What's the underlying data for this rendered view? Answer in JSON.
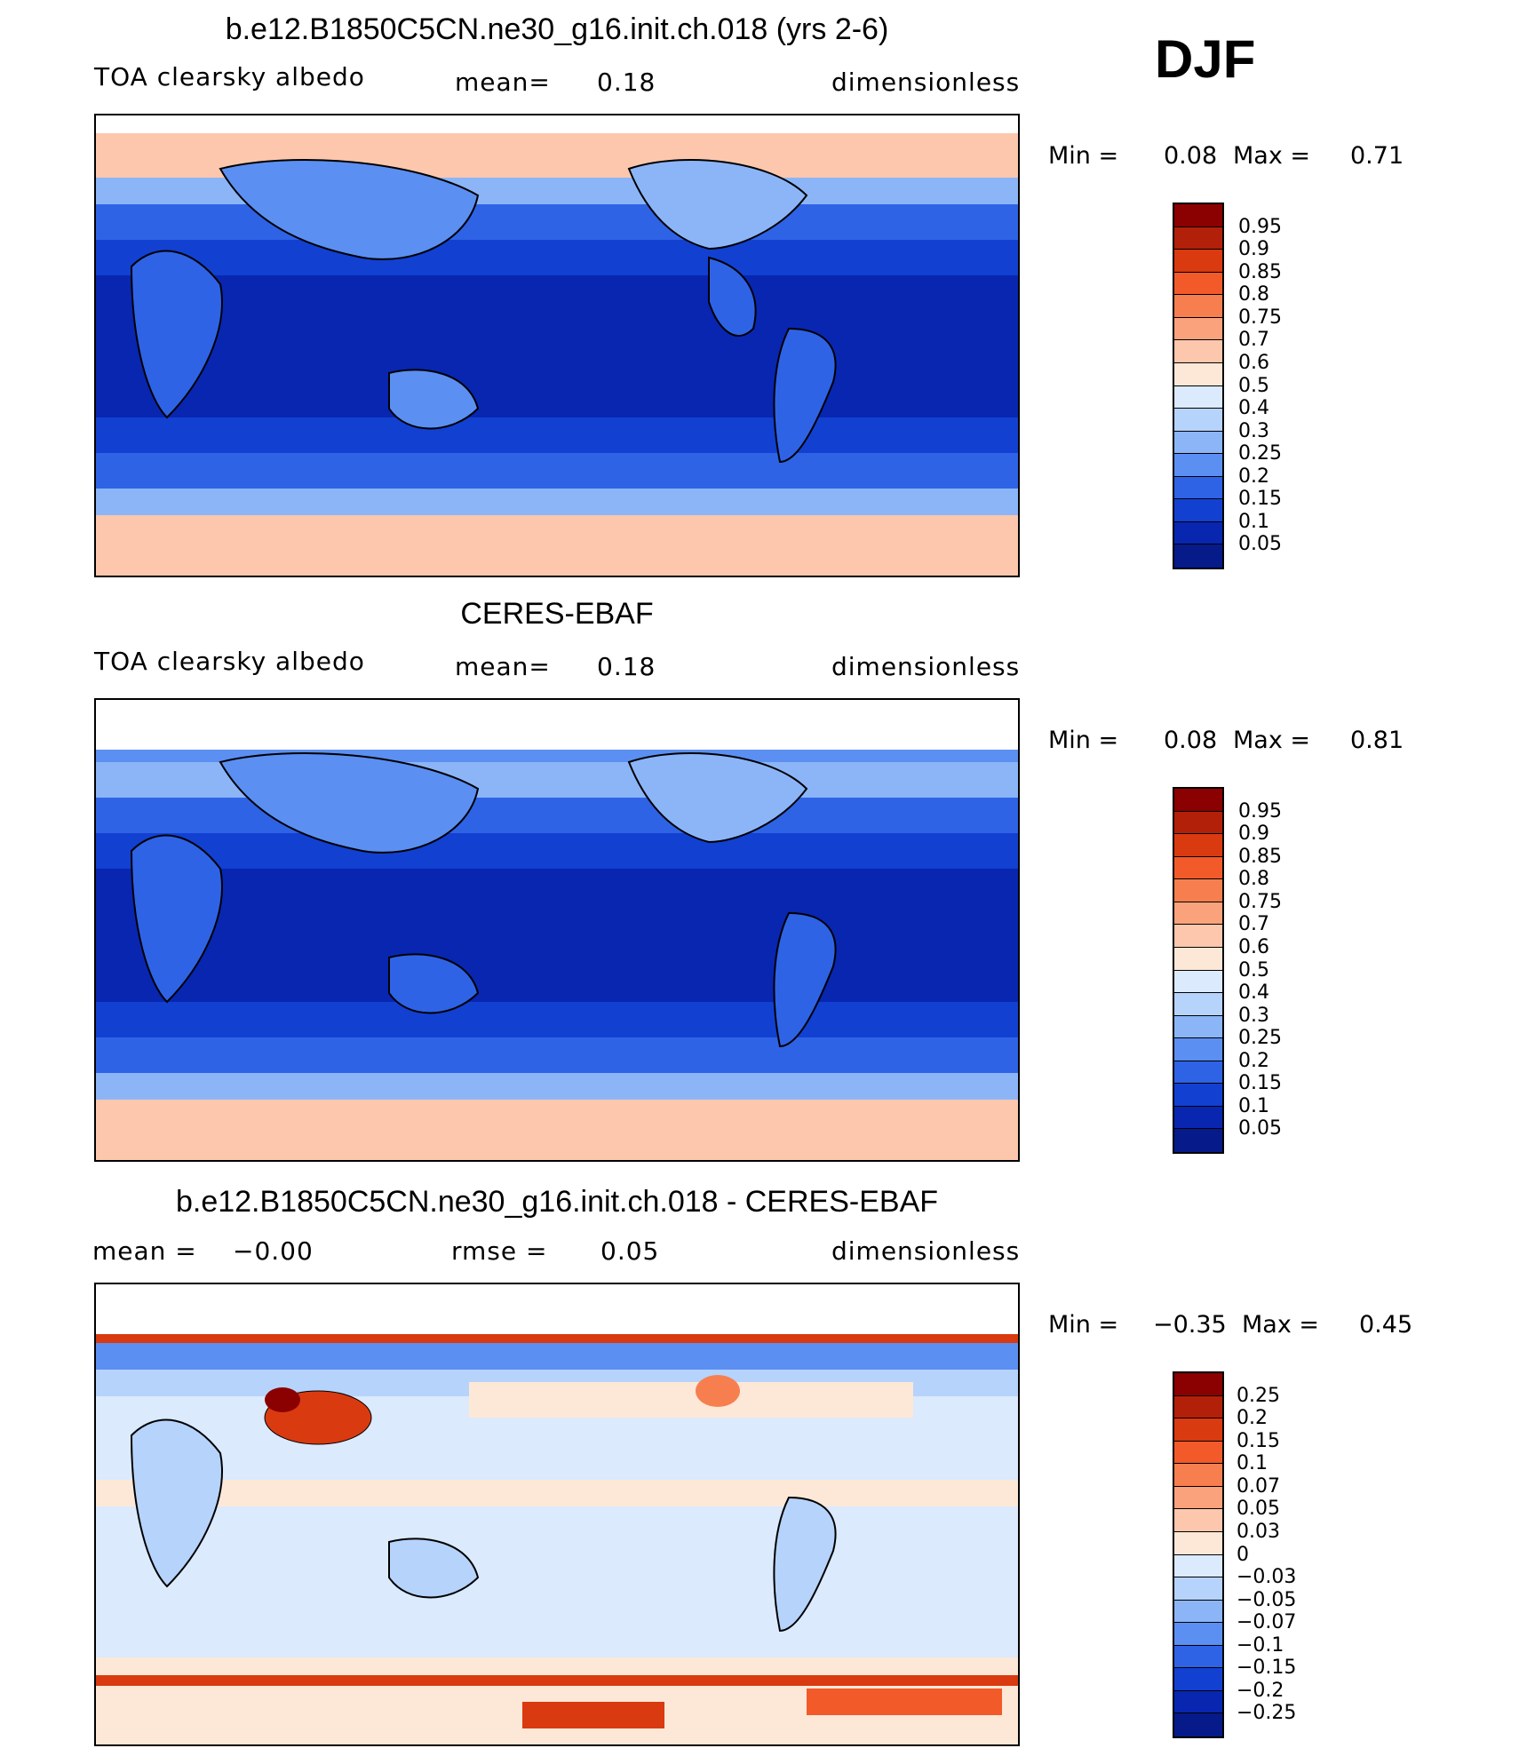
{
  "season": "DJF",
  "panels": [
    {
      "title": "b.e12.B1850C5CN.ne30_g16.init.ch.018 (yrs 2-6)",
      "left_label": "TOA clearsky albedo",
      "mid_label": "mean=",
      "mid_value": "0.18",
      "right_label": "dimensionless",
      "min_label": "Min =",
      "min_value": "0.08",
      "max_label": "Max =",
      "max_value": "0.71",
      "colorbar_labels": [
        "0.95",
        "0.9",
        "0.85",
        "0.8",
        "0.75",
        "0.7",
        "0.6",
        "0.5",
        "0.4",
        "0.3",
        "0.25",
        "0.2",
        "0.15",
        "0.1",
        "0.05"
      ],
      "colorbar_colors": [
        "#8b0000",
        "#b3200a",
        "#d93a10",
        "#f25a2a",
        "#f77f4f",
        "#f9a27c",
        "#fcc7ad",
        "#fde8d7",
        "#dbeafd",
        "#b6d3fb",
        "#8cb5f8",
        "#5b8ff2",
        "#2f63e6",
        "#1240d1",
        "#0826b0",
        "#061a8a"
      ],
      "level": "abs"
    },
    {
      "title": "CERES-EBAF",
      "left_label": "TOA clearsky albedo",
      "mid_label": "mean=",
      "mid_value": "0.18",
      "right_label": "dimensionless",
      "min_label": "Min =",
      "min_value": "0.08",
      "max_label": "Max =",
      "max_value": "0.81",
      "colorbar_labels": [
        "0.95",
        "0.9",
        "0.85",
        "0.8",
        "0.75",
        "0.7",
        "0.6",
        "0.5",
        "0.4",
        "0.3",
        "0.25",
        "0.2",
        "0.15",
        "0.1",
        "0.05"
      ],
      "colorbar_colors": [
        "#8b0000",
        "#b3200a",
        "#d93a10",
        "#f25a2a",
        "#f77f4f",
        "#f9a27c",
        "#fcc7ad",
        "#fde8d7",
        "#dbeafd",
        "#b6d3fb",
        "#8cb5f8",
        "#5b8ff2",
        "#2f63e6",
        "#1240d1",
        "#0826b0",
        "#061a8a"
      ],
      "level": "abs"
    },
    {
      "title": "b.e12.B1850C5CN.ne30_g16.init.ch.018 - CERES-EBAF",
      "left_label": "mean =",
      "left_value": "−0.00",
      "mid_label": "rmse =",
      "mid_value": "0.05",
      "right_label": "dimensionless",
      "min_label": "Min =",
      "min_value": "−0.35",
      "max_label": "Max =",
      "max_value": "0.45",
      "colorbar_labels": [
        "0.25",
        "0.2",
        "0.15",
        "0.1",
        "0.07",
        "0.05",
        "0.03",
        "0",
        "−0.03",
        "−0.05",
        "−0.07",
        "−0.1",
        "−0.15",
        "−0.2",
        "−0.25"
      ],
      "colorbar_colors": [
        "#8b0000",
        "#b3200a",
        "#d93a10",
        "#f25a2a",
        "#f77f4f",
        "#f9a27c",
        "#fcc7ad",
        "#fde8d7",
        "#dbeafd",
        "#b6d3fb",
        "#8cb5f8",
        "#5b8ff2",
        "#2f63e6",
        "#1240d1",
        "#0826b0",
        "#061a8a"
      ],
      "level": "diff"
    }
  ],
  "chart_data": [
    {
      "type": "heatmap",
      "title": "b.e12.B1850C5CN.ne30_g16.init.ch.018 (yrs 2-6)",
      "variable": "TOA clearsky albedo",
      "units": "dimensionless",
      "mean": 0.18,
      "min": 0.08,
      "max": 0.71,
      "levels": [
        0.05,
        0.1,
        0.15,
        0.2,
        0.25,
        0.3,
        0.4,
        0.5,
        0.6,
        0.7,
        0.75,
        0.8,
        0.85,
        0.9,
        0.95
      ]
    },
    {
      "type": "heatmap",
      "title": "CERES-EBAF",
      "variable": "TOA clearsky albedo",
      "units": "dimensionless",
      "mean": 0.18,
      "min": 0.08,
      "max": 0.81,
      "levels": [
        0.05,
        0.1,
        0.15,
        0.2,
        0.25,
        0.3,
        0.4,
        0.5,
        0.6,
        0.7,
        0.75,
        0.8,
        0.85,
        0.9,
        0.95
      ]
    },
    {
      "type": "heatmap",
      "title": "b.e12.B1850C5CN.ne30_g16.init.ch.018 - CERES-EBAF",
      "units": "dimensionless",
      "mean": -0.0,
      "rmse": 0.05,
      "min": -0.35,
      "max": 0.45,
      "levels": [
        -0.25,
        -0.2,
        -0.15,
        -0.1,
        -0.07,
        -0.05,
        -0.03,
        0,
        0.03,
        0.05,
        0.07,
        0.1,
        0.15,
        0.2,
        0.25
      ]
    }
  ]
}
